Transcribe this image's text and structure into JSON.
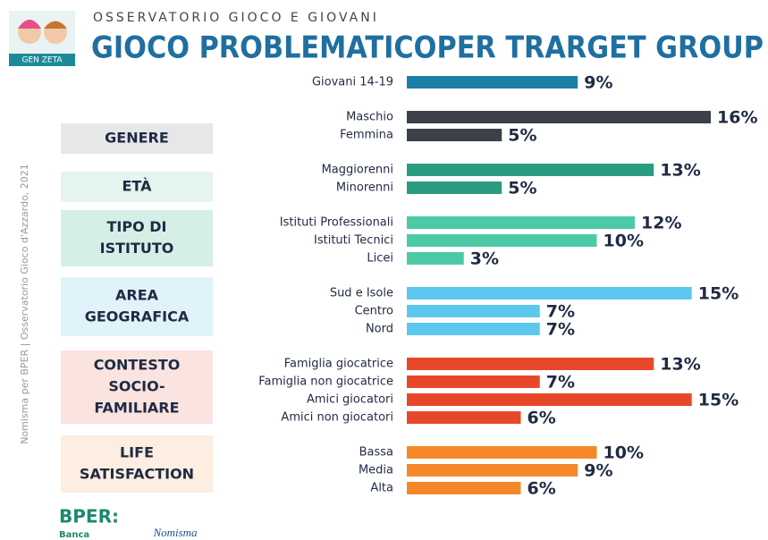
{
  "header": {
    "logo": "GEN ZETA",
    "kicker": "OSSERVATORIO GIOCO E GIOVANI",
    "title": "GIOCO PROBLEMATICOPER TRARGET GROUP"
  },
  "source": "Nomisma per BPER | Osservatorio Gioco d'Azzardo, 2021",
  "footer": {
    "bank": "BPER:",
    "bank_sub": "Banca",
    "partner": "Nomisma"
  },
  "chart_data": {
    "type": "bar",
    "groups": [
      {
        "color": "#1b7fa8",
        "categories": [
          "Giovani 14-19"
        ],
        "values": [
          9
        ],
        "value_labels": [
          "9%"
        ]
      },
      {
        "label": [
          "GENERE"
        ],
        "box_color": "#e6e7e8",
        "color": "#3b404b",
        "categories": [
          "Maschio",
          "Femmina"
        ],
        "values": [
          16,
          5
        ],
        "value_labels": [
          "16%",
          "5%"
        ]
      },
      {
        "label": [
          "ETÀ"
        ],
        "box_color": "#e4f4ef",
        "color": "#2a9d80",
        "categories": [
          "Maggiorenni",
          "Minorenni"
        ],
        "values": [
          13,
          5
        ],
        "value_labels": [
          "13%",
          "5%"
        ]
      },
      {
        "label": [
          "TIPO DI",
          "ISTITUTO"
        ],
        "box_color": "#d5efe6",
        "color": "#4ccaa6",
        "categories": [
          "Istituti Professionali",
          "Istituti Tecnici",
          "Licei"
        ],
        "values": [
          12,
          10,
          3
        ],
        "value_labels": [
          "12%",
          "10%",
          "3%"
        ]
      },
      {
        "label": [
          "AREA",
          "GEOGRAFICA"
        ],
        "box_color": "#e0f3fa",
        "color": "#5cc8ef",
        "categories": [
          "Sud e Isole",
          "Centro",
          "Nord"
        ],
        "values": [
          15,
          7,
          7
        ],
        "value_labels": [
          "15%",
          "7%",
          "7%"
        ]
      },
      {
        "label": [
          "CONTESTO",
          "SOCIO-",
          "FAMILIARE"
        ],
        "box_color": "#fbe4e0",
        "color": "#e8482a",
        "categories": [
          "Famiglia giocatrice",
          "Famiglia non giocatrice",
          "Amici giocatori",
          "Amici non giocatori"
        ],
        "values": [
          13,
          7,
          15,
          6
        ],
        "value_labels": [
          "13%",
          "7%",
          "15%",
          "6%"
        ]
      },
      {
        "label": [
          "LIFE",
          "SATISFACTION"
        ],
        "box_color": "#fdeee1",
        "color": "#f5892a",
        "categories": [
          "Bassa",
          "Media",
          "Alta"
        ],
        "values": [
          10,
          9,
          6
        ],
        "value_labels": [
          "10%",
          "9%",
          "6%"
        ]
      }
    ]
  }
}
